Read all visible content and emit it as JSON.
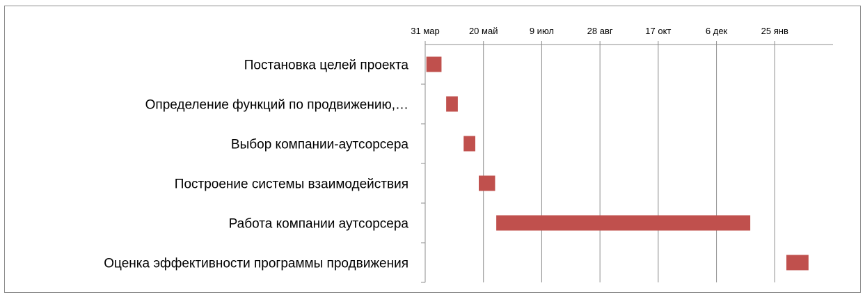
{
  "chart_data": {
    "type": "bar",
    "orientation": "horizontal-gantt",
    "title": "",
    "xlabel": "",
    "ylabel": "",
    "x_axis_position": "top",
    "x_ticks": [
      "31 мар",
      "20 май",
      "9 июл",
      "28 авг",
      "17 окт",
      "6 дек",
      "25 янв"
    ],
    "x_tick_dates": [
      "2014-03-31",
      "2014-05-20",
      "2014-07-09",
      "2014-08-28",
      "2014-10-17",
      "2014-12-06",
      "2015-01-25"
    ],
    "xlim": [
      "2014-03-31",
      "2015-03-16"
    ],
    "grid": "vertical major gridlines",
    "legend": "none",
    "bar_color": "#c0504d",
    "categories": [
      "Постановка целей проекта",
      "Определение функций по продвижению,…",
      "Выбор компании-аутсорсера ",
      "Построение системы взаимодействия",
      "Работа компании аутсорсера",
      "Оценка эффективности программы продвижения"
    ],
    "series": [
      {
        "start": [
          "2014-04-01",
          "2014-04-18",
          "2014-05-03",
          "2014-05-16",
          "2014-05-31",
          "2015-02-04"
        ],
        "end": [
          "2014-04-14",
          "2014-04-28",
          "2014-05-13",
          "2014-05-30",
          "2015-01-04",
          "2015-02-23"
        ]
      }
    ]
  }
}
